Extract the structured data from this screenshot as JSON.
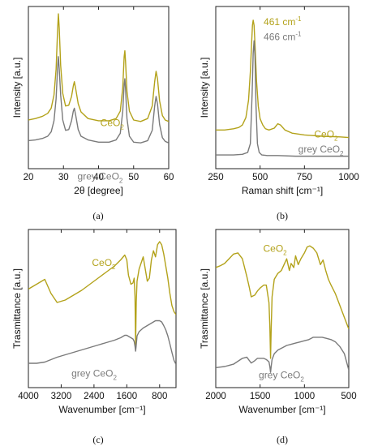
{
  "colors": {
    "ceo2": "#b3a21a",
    "grey": "#7a7a7a",
    "peak_grey": "#8a8a8a"
  },
  "chart_data": [
    {
      "type": "line",
      "panel_label": "(a)",
      "xlabel": "2θ [degree]",
      "ylabel": "Intensity [a.u.]",
      "xlim": [
        20,
        60
      ],
      "xticks": [
        20,
        30,
        40,
        50,
        60
      ],
      "xtick_labels": [
        "20",
        "30",
        "40",
        "50",
        "60"
      ],
      "yticks_shown": false,
      "annotations": [
        {
          "text": "CeO",
          "sub": "2",
          "color_key": "ceo2",
          "x": 40.5,
          "y": 0.78
        },
        {
          "text": "grey CeO",
          "sub": "2",
          "color_key": "grey",
          "x": 34.0,
          "y": 0.05
        }
      ],
      "series": [
        {
          "name": "CeO2",
          "color_key": "ceo2",
          "x": [
            20,
            22,
            24,
            25.5,
            26.5,
            27.3,
            27.9,
            28.3,
            28.55,
            28.8,
            29.2,
            29.8,
            30.6,
            31.5,
            32.3,
            32.8,
            33.1,
            33.5,
            34.2,
            35,
            37,
            40,
            43,
            45,
            46.2,
            46.9,
            47.3,
            47.5,
            47.7,
            48.1,
            48.8,
            50,
            52,
            54,
            55.3,
            56.0,
            56.4,
            56.8,
            57.4,
            58.2,
            59,
            60
          ],
          "y": [
            0.86,
            0.88,
            0.91,
            0.95,
            1.02,
            1.2,
            1.55,
            2.05,
            2.3,
            2.1,
            1.6,
            1.22,
            1.05,
            1.06,
            1.18,
            1.32,
            1.38,
            1.28,
            1.08,
            0.97,
            0.88,
            0.85,
            0.85,
            0.88,
            0.98,
            1.3,
            1.72,
            1.8,
            1.65,
            1.25,
            0.98,
            0.86,
            0.84,
            0.88,
            1.05,
            1.38,
            1.52,
            1.42,
            1.12,
            0.92,
            0.86,
            0.84
          ]
        },
        {
          "name": "grey CeO2",
          "color_key": "grey",
          "x": [
            20,
            22,
            24,
            25.5,
            26.5,
            27.3,
            27.9,
            28.3,
            28.55,
            28.8,
            29.2,
            29.8,
            30.6,
            31.5,
            32.3,
            32.8,
            33.1,
            33.5,
            34.2,
            35,
            37,
            40,
            43,
            45,
            46.2,
            46.9,
            47.3,
            47.5,
            47.7,
            48.1,
            48.8,
            50,
            52,
            54,
            55.3,
            56.0,
            56.4,
            56.8,
            57.4,
            58.2,
            59,
            60
          ],
          "y": [
            0.58,
            0.59,
            0.61,
            0.64,
            0.7,
            0.85,
            1.15,
            1.55,
            1.72,
            1.55,
            1.2,
            0.86,
            0.72,
            0.73,
            0.85,
            0.98,
            1.02,
            0.92,
            0.73,
            0.64,
            0.59,
            0.56,
            0.56,
            0.59,
            0.68,
            0.98,
            1.34,
            1.42,
            1.28,
            0.88,
            0.64,
            0.56,
            0.55,
            0.58,
            0.72,
            1.05,
            1.18,
            1.08,
            0.8,
            0.62,
            0.57,
            0.55
          ]
        }
      ],
      "ylim": [
        0.2,
        2.4
      ]
    },
    {
      "type": "line",
      "panel_label": "(b)",
      "xlabel": "Raman shift [cm⁻¹]",
      "ylabel": "Intensity [a.u.]",
      "xlim": [
        250,
        1000
      ],
      "xticks": [
        250,
        500,
        750,
        1000
      ],
      "xtick_labels": [
        "250",
        "500",
        "750",
        "1000"
      ],
      "yticks_shown": false,
      "annotations": [
        {
          "text": "461 cm",
          "sup": "-1",
          "color_key": "ceo2",
          "x": 520,
          "y": 2.3
        },
        {
          "text": "466 cm",
          "sup": "-1",
          "color_key": "grey",
          "x": 520,
          "y": 2.06
        },
        {
          "text": "CeO",
          "sub": "2",
          "color_key": "ceo2",
          "x": 805,
          "y": 0.5
        },
        {
          "text": "grey CeO",
          "sub": "2",
          "color_key": "grey",
          "x": 715,
          "y": 0.26
        }
      ],
      "series": [
        {
          "name": "CeO2",
          "color_key": "ceo2",
          "x": [
            250,
            300,
            350,
            380,
            400,
            420,
            435,
            445,
            452,
            457,
            461,
            466,
            472,
            480,
            490,
            500,
            515,
            530,
            550,
            580,
            600,
            615,
            640,
            680,
            750,
            850,
            950,
            1000
          ],
          "y": [
            0.62,
            0.62,
            0.64,
            0.66,
            0.7,
            0.82,
            1.1,
            1.55,
            2.0,
            2.3,
            2.38,
            2.3,
            1.95,
            1.4,
            1.0,
            0.8,
            0.7,
            0.64,
            0.62,
            0.65,
            0.72,
            0.7,
            0.62,
            0.57,
            0.54,
            0.52,
            0.51,
            0.5
          ]
        },
        {
          "name": "grey CeO2",
          "color_key": "grey",
          "x": [
            250,
            300,
            350,
            400,
            430,
            445,
            455,
            461,
            466,
            471,
            477,
            485,
            495,
            510,
            540,
            600,
            700,
            800,
            900,
            1000
          ],
          "y": [
            0.22,
            0.22,
            0.22,
            0.23,
            0.26,
            0.4,
            1.2,
            1.85,
            2.05,
            1.8,
            1.0,
            0.4,
            0.26,
            0.22,
            0.21,
            0.21,
            0.2,
            0.2,
            0.2,
            0.2
          ]
        }
      ],
      "ylim": [
        0.0,
        2.6
      ]
    },
    {
      "type": "line",
      "panel_label": "(c)",
      "xlabel": "Wavenumber [cm⁻¹]",
      "ylabel": "Trasmittance [a.u.]",
      "xlim": [
        4000,
        400
      ],
      "xticks": [
        4000,
        3200,
        2400,
        1600,
        800
      ],
      "xtick_labels": [
        "4000",
        "3200",
        "2400",
        "1600",
        "800"
      ],
      "yticks_shown": false,
      "annotations": [
        {
          "text": "CeO",
          "sub": "2",
          "color_key": "ceo2",
          "x": 2450,
          "y": 2.0
        },
        {
          "text": "grey CeO",
          "sub": "2",
          "color_key": "grey",
          "x": 2950,
          "y": 0.18
        }
      ],
      "series": [
        {
          "name": "CeO2",
          "color_key": "ceo2",
          "x": [
            4000,
            3800,
            3600,
            3450,
            3300,
            3100,
            2900,
            2700,
            2500,
            2300,
            2100,
            1900,
            1750,
            1650,
            1600,
            1560,
            1500,
            1450,
            1420,
            1400,
            1385,
            1370,
            1350,
            1300,
            1250,
            1200,
            1150,
            1100,
            1050,
            1000,
            950,
            900,
            850,
            800,
            750,
            700,
            650,
            600,
            550,
            500,
            450,
            400
          ],
          "y": [
            1.62,
            1.7,
            1.78,
            1.55,
            1.4,
            1.44,
            1.52,
            1.6,
            1.7,
            1.8,
            1.9,
            2.0,
            2.1,
            2.18,
            2.1,
            1.85,
            1.7,
            1.72,
            1.8,
            1.5,
            0.7,
            1.4,
            1.75,
            1.95,
            2.05,
            2.15,
            1.95,
            1.75,
            1.8,
            2.1,
            2.25,
            2.15,
            2.35,
            2.4,
            2.35,
            2.2,
            2.0,
            1.8,
            1.55,
            1.35,
            1.25,
            1.2
          ]
        },
        {
          "name": "grey CeO2",
          "color_key": "grey",
          "x": [
            4000,
            3800,
            3600,
            3450,
            3300,
            3100,
            2900,
            2700,
            2500,
            2300,
            2100,
            1900,
            1750,
            1650,
            1600,
            1500,
            1450,
            1420,
            1400,
            1385,
            1370,
            1350,
            1300,
            1200,
            1100,
            1000,
            900,
            800,
            750,
            700,
            650,
            600,
            550,
            500,
            450,
            400
          ],
          "y": [
            0.4,
            0.4,
            0.42,
            0.46,
            0.5,
            0.54,
            0.58,
            0.62,
            0.66,
            0.7,
            0.74,
            0.78,
            0.82,
            0.86,
            0.86,
            0.82,
            0.8,
            0.76,
            0.68,
            0.6,
            0.7,
            0.85,
            0.92,
            0.98,
            1.02,
            1.06,
            1.1,
            1.1,
            1.08,
            1.02,
            0.95,
            0.85,
            0.72,
            0.58,
            0.45,
            0.38
          ]
        }
      ],
      "ylim": [
        0.0,
        2.6
      ]
    },
    {
      "type": "line",
      "panel_label": "(d)",
      "xlabel": "Wavenumber [cm⁻¹]",
      "ylabel": "Trasmittance [a.u.]",
      "xlim": [
        2000,
        500
      ],
      "xticks": [
        2000,
        1500,
        1000,
        500
      ],
      "xtick_labels": [
        "2000",
        "1500",
        "1000",
        "500"
      ],
      "yticks_shown": false,
      "annotations": [
        {
          "text": "CeO",
          "sub": "2",
          "color_key": "ceo2",
          "x": 1465,
          "y": 2.32
        },
        {
          "text": "grey CeO",
          "sub": "2",
          "color_key": "grey",
          "x": 1515,
          "y": 0.16
        }
      ],
      "series": [
        {
          "name": "CeO2",
          "color_key": "ceo2",
          "x": [
            2000,
            1950,
            1900,
            1850,
            1800,
            1750,
            1700,
            1650,
            1620,
            1600,
            1560,
            1530,
            1500,
            1460,
            1430,
            1400,
            1390,
            1382,
            1375,
            1365,
            1340,
            1300,
            1260,
            1230,
            1200,
            1170,
            1150,
            1120,
            1100,
            1070,
            1040,
            1000,
            970,
            940,
            900,
            860,
            820,
            790,
            760,
            730,
            700,
            650,
            600,
            550,
            500
          ],
          "y": [
            2.05,
            2.08,
            2.12,
            2.2,
            2.28,
            2.3,
            2.2,
            1.9,
            1.7,
            1.55,
            1.58,
            1.65,
            1.7,
            1.75,
            1.75,
            1.45,
            1.05,
            0.5,
            1.0,
            1.55,
            1.85,
            1.95,
            2.0,
            2.1,
            2.2,
            2.0,
            2.12,
            2.05,
            2.25,
            2.1,
            2.2,
            2.3,
            2.4,
            2.42,
            2.38,
            2.3,
            2.1,
            2.18,
            2.0,
            1.85,
            1.75,
            1.6,
            1.4,
            1.2,
            1.0
          ]
        },
        {
          "name": "grey CeO2",
          "color_key": "grey",
          "x": [
            2000,
            1950,
            1900,
            1850,
            1800,
            1750,
            1700,
            1650,
            1620,
            1600,
            1560,
            1530,
            1500,
            1460,
            1430,
            1400,
            1390,
            1382,
            1375,
            1365,
            1340,
            1300,
            1250,
            1200,
            1150,
            1100,
            1050,
            1000,
            950,
            900,
            850,
            800,
            750,
            700,
            650,
            600,
            550,
            500
          ],
          "y": [
            0.34,
            0.35,
            0.36,
            0.38,
            0.4,
            0.45,
            0.5,
            0.52,
            0.46,
            0.42,
            0.46,
            0.5,
            0.5,
            0.5,
            0.48,
            0.44,
            0.36,
            0.26,
            0.36,
            0.48,
            0.58,
            0.64,
            0.68,
            0.72,
            0.74,
            0.76,
            0.78,
            0.8,
            0.82,
            0.86,
            0.86,
            0.86,
            0.84,
            0.82,
            0.78,
            0.7,
            0.58,
            0.3
          ]
        }
      ],
      "ylim": [
        0.0,
        2.7
      ]
    }
  ]
}
